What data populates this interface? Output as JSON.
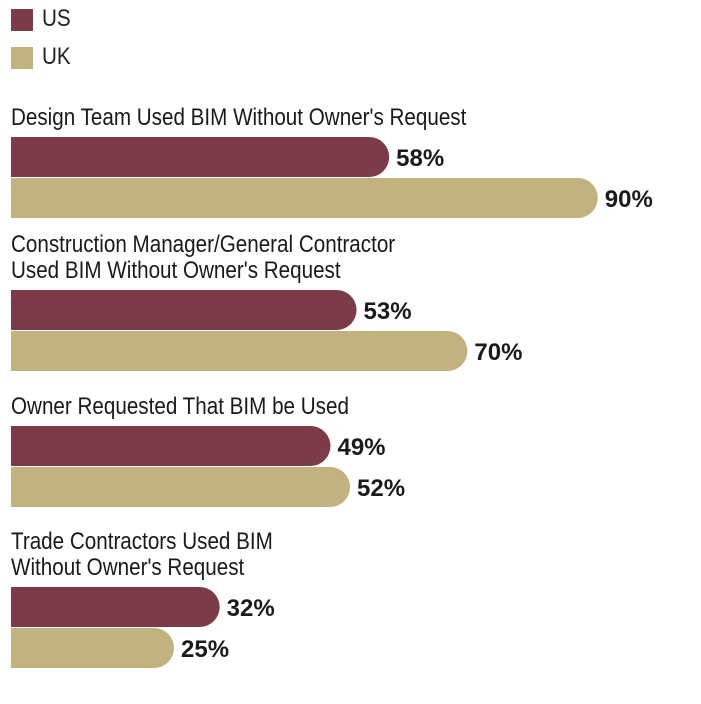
{
  "chart_data": {
    "type": "bar",
    "orientation": "horizontal",
    "legend": {
      "placement": "top-left",
      "items": [
        {
          "name": "US",
          "color": "#7b3b48"
        },
        {
          "name": "UK",
          "color": "#c2b280"
        }
      ]
    },
    "categories": [
      [
        "Design Team Used BIM Without Owner's Request"
      ],
      [
        "Construction Manager/General Contractor",
        "Used BIM Without Owner's Request"
      ],
      [
        "Owner Requested That BIM be Used"
      ],
      [
        "Trade Contractors Used BIM",
        "Without Owner's Request"
      ]
    ],
    "series": [
      {
        "name": "US",
        "color": "#7b3b48",
        "values": [
          58,
          53,
          49,
          32
        ],
        "labels": [
          "58%",
          "53%",
          "49%",
          "32%"
        ]
      },
      {
        "name": "UK",
        "color": "#c2b280",
        "values": [
          90,
          70,
          52,
          25
        ],
        "labels": [
          "90%",
          "70%",
          "52%",
          "25%"
        ]
      }
    ],
    "xlim": [
      0,
      100
    ],
    "grid": false
  }
}
